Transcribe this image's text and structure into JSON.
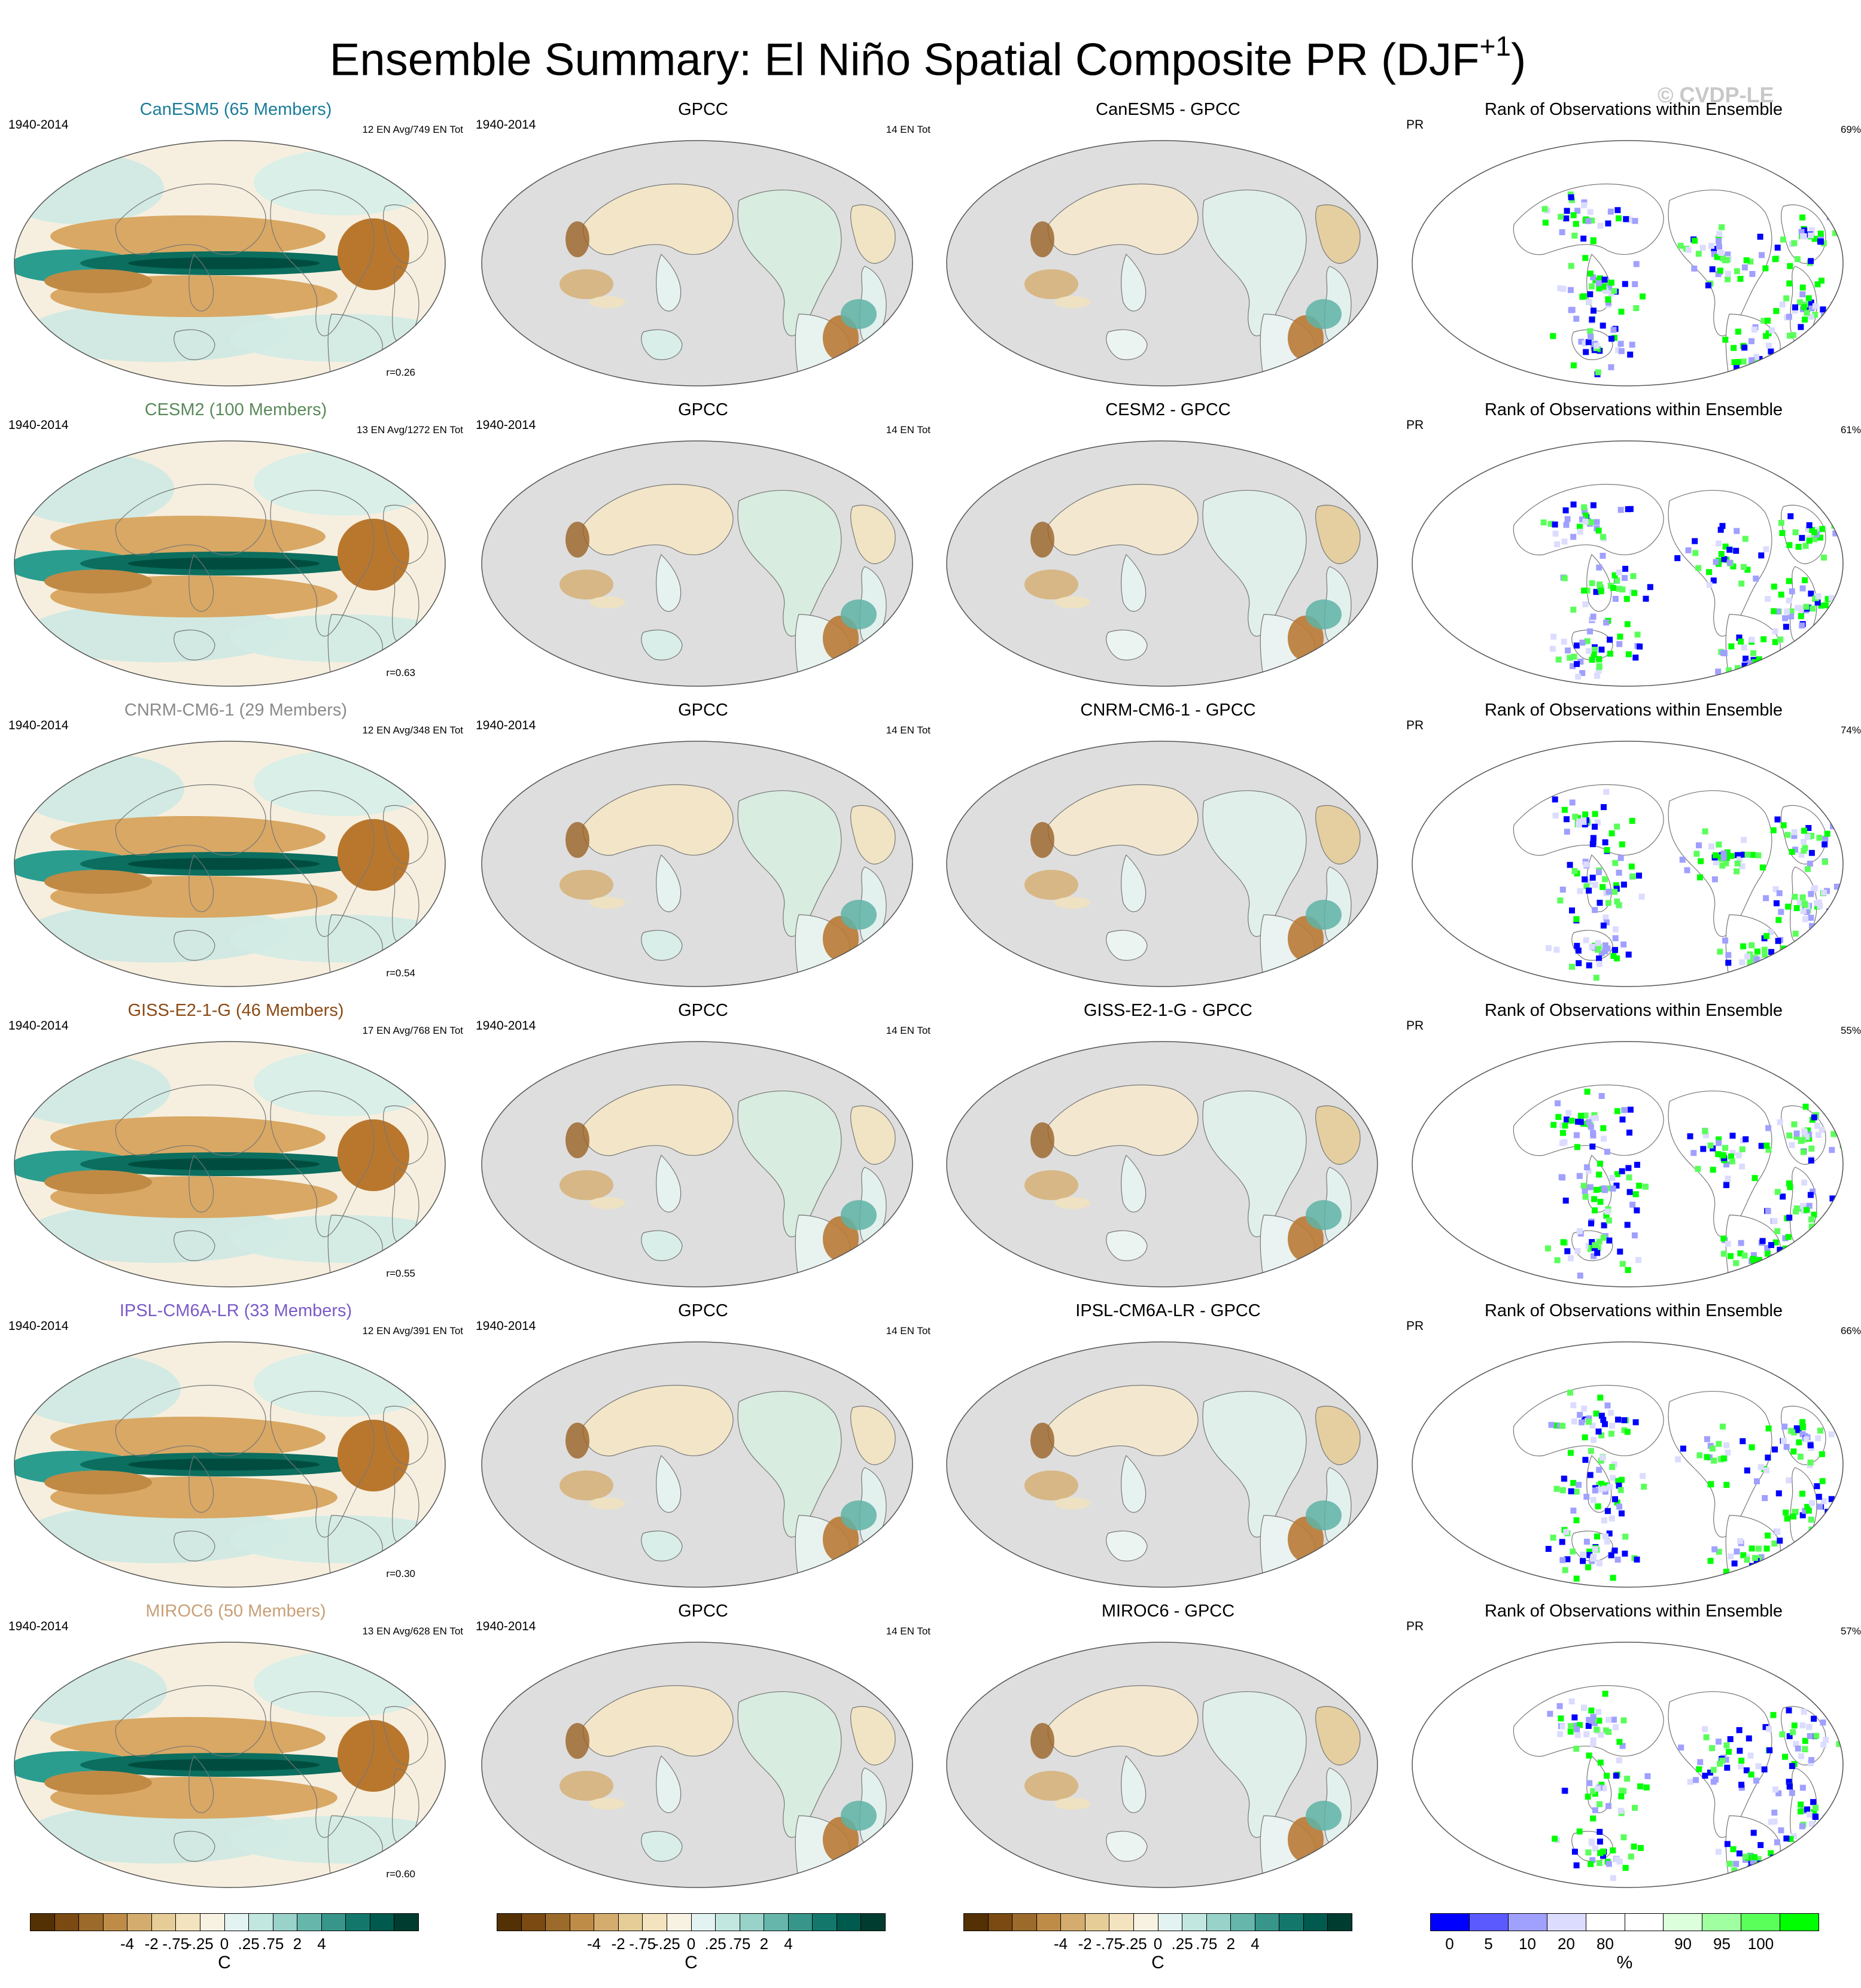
{
  "title": "Ensemble Summary: El Niño Spatial Composite PR (DJF",
  "title_sup": "+1",
  "title_close": ")",
  "watermark": "© CVDP-LE",
  "rows": [
    {
      "model": "CanESM5 (65 Members)",
      "model_color": "#1a7c9a",
      "period": "1940-2014",
      "counts": "12 EN Avg/749 EN Tot",
      "corr": "r=0.26",
      "obs_title": "GPCC",
      "obs_count": "14 EN Tot",
      "diff_title": "CanESM5 - GPCC",
      "rank_title": "Rank of Observations within Ensemble",
      "rank_var": "PR",
      "rank_pct": "69%"
    },
    {
      "model": "CESM2 (100 Members)",
      "model_color": "#5a8a5a",
      "period": "1940-2014",
      "counts": "13 EN Avg/1272 EN Tot",
      "corr": "r=0.63",
      "obs_title": "GPCC",
      "obs_count": "14 EN Tot",
      "diff_title": "CESM2 - GPCC",
      "rank_title": "Rank of Observations within Ensemble",
      "rank_var": "PR",
      "rank_pct": "61%"
    },
    {
      "model": "CNRM-CM6-1 (29 Members)",
      "model_color": "#8a8a8a",
      "period": "1940-2014",
      "counts": "12 EN Avg/348 EN Tot",
      "corr": "r=0.54",
      "obs_title": "GPCC",
      "obs_count": "14 EN Tot",
      "diff_title": "CNRM-CM6-1 - GPCC",
      "rank_title": "Rank of Observations within Ensemble",
      "rank_var": "PR",
      "rank_pct": "74%"
    },
    {
      "model": "GISS-E2-1-G (46 Members)",
      "model_color": "#8b4a14",
      "period": "1940-2014",
      "counts": "17 EN Avg/768 EN Tot",
      "corr": "r=0.55",
      "obs_title": "GPCC",
      "obs_count": "14 EN Tot",
      "diff_title": "GISS-E2-1-G - GPCC",
      "rank_title": "Rank of Observations within Ensemble",
      "rank_var": "PR",
      "rank_pct": "55%"
    },
    {
      "model": "IPSL-CM6A-LR (33 Members)",
      "model_color": "#7a5ac8",
      "period": "1940-2014",
      "counts": "12 EN Avg/391 EN Tot",
      "corr": "r=0.30",
      "obs_title": "GPCC",
      "obs_count": "14 EN Tot",
      "diff_title": "IPSL-CM6A-LR - GPCC",
      "rank_title": "Rank of Observations within Ensemble",
      "rank_var": "PR",
      "rank_pct": "66%"
    },
    {
      "model": "MIROC6 (50 Members)",
      "model_color": "#c8a078",
      "period": "1940-2014",
      "counts": "13 EN Avg/628 EN Tot",
      "corr": "r=0.60",
      "obs_title": "GPCC",
      "obs_count": "14 EN Tot",
      "diff_title": "MIROC6 - GPCC",
      "rank_title": "Rank of Observations within Ensemble",
      "rank_var": "PR",
      "rank_pct": "57%"
    }
  ],
  "colorbars": [
    {
      "labels": [
        "-4",
        "-2",
        "-.75",
        "-.25",
        "0",
        ".25",
        ".75",
        "2",
        "4"
      ],
      "unit": "C",
      "colors": [
        "#543005",
        "#7a4a12",
        "#9c6a2a",
        "#bf8c48",
        "#d4ad6e",
        "#e6cd98",
        "#f3e3bf",
        "#f8f2e2",
        "#e3f3f1",
        "#c2e6e0",
        "#98d2c8",
        "#66b6ab",
        "#37958a",
        "#13776b",
        "#005a4d",
        "#003c30"
      ]
    },
    {
      "labels": [
        "-4",
        "-2",
        "-.75",
        "-.25",
        "0",
        ".25",
        ".75",
        "2",
        "4"
      ],
      "unit": "C",
      "colors": [
        "#543005",
        "#7a4a12",
        "#9c6a2a",
        "#bf8c48",
        "#d4ad6e",
        "#e6cd98",
        "#f3e3bf",
        "#f8f2e2",
        "#e3f3f1",
        "#c2e6e0",
        "#98d2c8",
        "#66b6ab",
        "#37958a",
        "#13776b",
        "#005a4d",
        "#003c30"
      ]
    },
    {
      "labels": [
        "-4",
        "-2",
        "-.75",
        "-.25",
        "0",
        ".25",
        ".75",
        "2",
        "4"
      ],
      "unit": "C",
      "colors": [
        "#543005",
        "#7a4a12",
        "#9c6a2a",
        "#bf8c48",
        "#d4ad6e",
        "#e6cd98",
        "#f3e3bf",
        "#f8f2e2",
        "#e3f3f1",
        "#c2e6e0",
        "#98d2c8",
        "#66b6ab",
        "#37958a",
        "#13776b",
        "#005a4d",
        "#003c30"
      ]
    },
    {
      "labels": [
        "0",
        "5",
        "10",
        "20",
        "80",
        "90",
        "95",
        "100"
      ],
      "unit": "%",
      "colors": [
        "#0000ff",
        "#5a5aff",
        "#a0a0ff",
        "#dcdcff",
        "#ffffff",
        "#ffffff",
        "#dcffdc",
        "#a0ffa0",
        "#5aff5a",
        "#00ff00"
      ]
    }
  ]
}
